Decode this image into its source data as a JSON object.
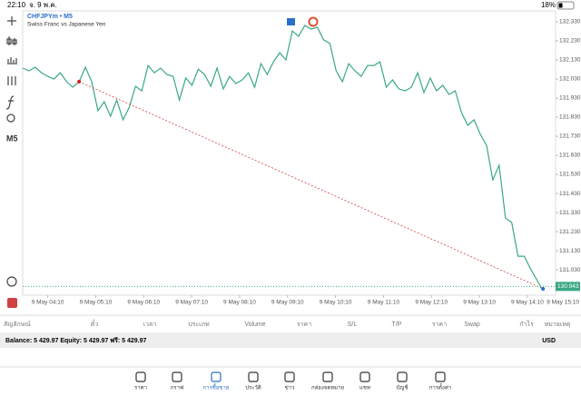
{
  "status_bar": {
    "time": "22:10",
    "date": "จ. 9 พ.ค.",
    "battery": "18%"
  },
  "chart_data": {
    "type": "line",
    "title": "CHFJPYm • M5",
    "subtitle": "Swiss Franc vs Japanese Yen",
    "timeframe": "M5",
    "series": [
      {
        "name": "CHFJPYm",
        "color": "#3aa882",
        "values": [
          132.087,
          132.073,
          132.092,
          132.063,
          132.044,
          132.03,
          132.063,
          132.016,
          131.987,
          132.016,
          132.092,
          132.016,
          131.864,
          131.911,
          131.835,
          131.92,
          131.816,
          131.882,
          131.992,
          131.968,
          132.101,
          132.063,
          132.087,
          132.054,
          132.044,
          131.92,
          132.035,
          131.997,
          132.082,
          132.054,
          131.992,
          132.087,
          131.978,
          132.044,
          132.006,
          132.025,
          132.063,
          131.987,
          132.111,
          132.054,
          132.12,
          132.168,
          132.13,
          132.282,
          132.254,
          132.311,
          132.292,
          132.301,
          132.235,
          132.216,
          132.073,
          132.016,
          132.111,
          132.073,
          132.044,
          132.101,
          132.101,
          132.12,
          131.987,
          132.025,
          131.978,
          131.968,
          131.987,
          132.063,
          131.959,
          132.035,
          131.968,
          131.997,
          131.949,
          131.968,
          131.854,
          131.787,
          131.816,
          131.74,
          131.682,
          131.501,
          131.578,
          131.301,
          131.278,
          131.101,
          131.101,
          131.035,
          130.978,
          130.921
        ]
      }
    ],
    "current_price": {
      "value": 130.943,
      "label": "130.943"
    },
    "xlim": [
      0,
      85
    ],
    "xticks": [
      {
        "value": 4,
        "label": "9 May 04:10"
      },
      {
        "value": 11.65,
        "label": "9 May 05:10"
      },
      {
        "value": 19.3,
        "label": "9 May 06:10"
      },
      {
        "value": 26.95,
        "label": "9 May 07:10"
      },
      {
        "value": 34.6,
        "label": "9 May 08:10"
      },
      {
        "value": 42.25,
        "label": "9 May 09:10"
      },
      {
        "value": 49.9,
        "label": "9 May 10:10"
      },
      {
        "value": 57.55,
        "label": "9 May 11:10"
      },
      {
        "value": 65.2,
        "label": "9 May 12:10"
      },
      {
        "value": 72.85,
        "label": "9 May 13:10"
      },
      {
        "value": 80.5,
        "label": "9 May 14:10"
      },
      {
        "value": 88.15,
        "label": "9 May 15:10"
      }
    ],
    "ylim": [
      130.897,
      132.387
    ],
    "yticks": [
      {
        "value": 132.33,
        "label": "132.330"
      },
      {
        "value": 132.23,
        "label": "132.230"
      },
      {
        "value": 132.13,
        "label": "132.130"
      },
      {
        "value": 132.03,
        "label": "132.030"
      },
      {
        "value": 131.93,
        "label": "131.930"
      },
      {
        "value": 131.83,
        "label": "131.830"
      },
      {
        "value": 131.73,
        "label": "131.730"
      },
      {
        "value": 131.63,
        "label": "131.630"
      },
      {
        "value": 131.53,
        "label": "131.530"
      },
      {
        "value": 131.43,
        "label": "131.430"
      },
      {
        "value": 131.33,
        "label": "131.330"
      },
      {
        "value": 131.23,
        "label": "131.230"
      },
      {
        "value": 131.13,
        "label": "131.130"
      },
      {
        "value": 131.03,
        "label": "131.030"
      }
    ]
  },
  "table": {
    "columns": [
      "สัญลักษณ์",
      "ตั๋ว",
      "เวลา",
      "ประเภท",
      "Volume",
      "ราคา",
      "S/L",
      "T/P",
      "ราคา",
      "Swap",
      "กำไร",
      "หมายเหตุ"
    ],
    "balance": "Balance: 5 429.97 Equity: 5 429.97 ฟรี: 5 429.97",
    "currency": "USD"
  },
  "tabs": [
    "ราคา",
    "กราฟ",
    "การซื้อขาย",
    "ประวัติ",
    "ข่าว",
    "กล่องจดหมาย",
    "แชท",
    "บัญชี",
    "การตั้งค่า"
  ]
}
